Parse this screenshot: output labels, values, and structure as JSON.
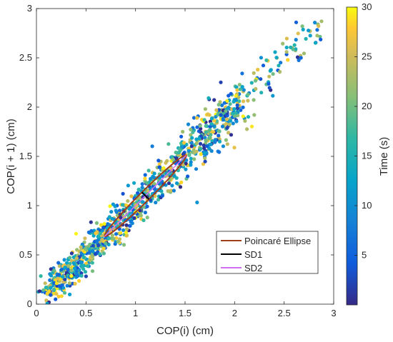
{
  "chart_data": {
    "type": "scatter",
    "title": "",
    "xlabel": "COP(i) (cm)",
    "ylabel": "COP(i + 1) (cm)",
    "xlim": [
      0,
      3
    ],
    "ylim": [
      0,
      3
    ],
    "xticks": [
      "0",
      "0.5",
      "1",
      "1.5",
      "2",
      "2.5",
      "3"
    ],
    "yticks": [
      "0",
      "0.5",
      "1",
      "1.5",
      "2",
      "2.5",
      "3"
    ],
    "grid": false,
    "colorbar": {
      "label": "Time (s)",
      "range": [
        0,
        30
      ],
      "ticks": [
        "5",
        "10",
        "15",
        "20",
        "25",
        "30"
      ],
      "colormap": "parula"
    },
    "scatter_trend": {
      "description_values": "points lie along y = x",
      "x_range": [
        0.08,
        2.85
      ],
      "spread": 0.12
    },
    "ellipse": {
      "center": [
        1.1,
        1.1
      ],
      "sd1": 0.05,
      "sd2": 0.58,
      "angle_deg": 45
    },
    "legend": {
      "placement": "lower-right",
      "items": [
        {
          "name": "Poincaré Ellipse",
          "color": "#a0401a"
        },
        {
          "name": "SD1",
          "color": "#000000"
        },
        {
          "name": "SD2",
          "color": "#d070f0"
        }
      ]
    }
  }
}
